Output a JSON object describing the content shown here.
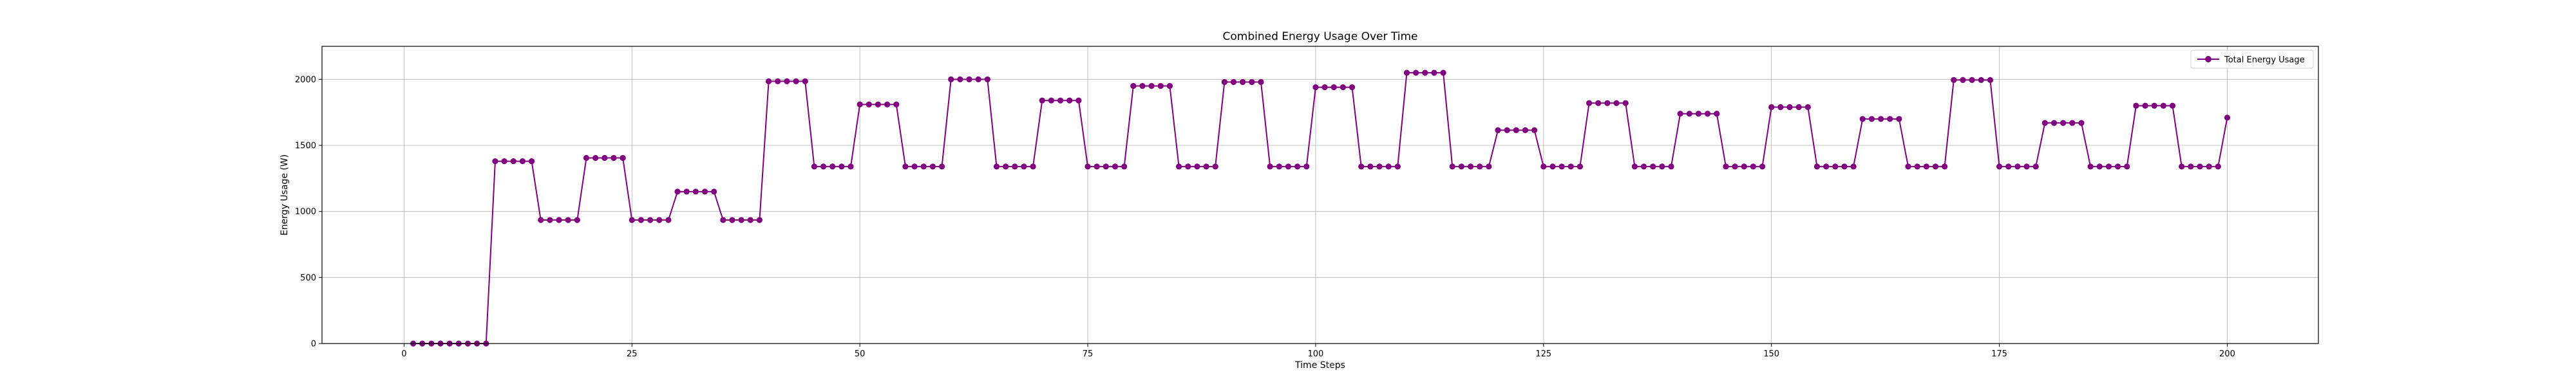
{
  "chart_data": {
    "type": "line",
    "title": "Combined Energy Usage Over Time",
    "xlabel": "Time Steps",
    "ylabel": "Energy Usage (W)",
    "xlim": [
      -9,
      210
    ],
    "ylim": [
      0,
      2250
    ],
    "xticks": [
      0,
      25,
      50,
      75,
      100,
      125,
      150,
      175,
      200
    ],
    "yticks": [
      0,
      500,
      1000,
      1500,
      2000
    ],
    "grid": true,
    "legend": "top-right",
    "series": [
      {
        "name": "Total Energy Usage",
        "color": "#800080",
        "marker": "circle",
        "segments": [
          {
            "x_start": 1,
            "x_end": 9,
            "y": 0
          },
          {
            "x_start": 10,
            "x_end": 14,
            "y": 1380
          },
          {
            "x_start": 15,
            "x_end": 19,
            "y": 935
          },
          {
            "x_start": 20,
            "x_end": 24,
            "y": 1405
          },
          {
            "x_start": 25,
            "x_end": 29,
            "y": 935
          },
          {
            "x_start": 30,
            "x_end": 34,
            "y": 1150
          },
          {
            "x_start": 35,
            "x_end": 39,
            "y": 935
          },
          {
            "x_start": 40,
            "x_end": 44,
            "y": 1985
          },
          {
            "x_start": 45,
            "x_end": 49,
            "y": 1340
          },
          {
            "x_start": 50,
            "x_end": 54,
            "y": 1810
          },
          {
            "x_start": 55,
            "x_end": 59,
            "y": 1340
          },
          {
            "x_start": 60,
            "x_end": 64,
            "y": 2000
          },
          {
            "x_start": 65,
            "x_end": 69,
            "y": 1340
          },
          {
            "x_start": 70,
            "x_end": 74,
            "y": 1840
          },
          {
            "x_start": 75,
            "x_end": 79,
            "y": 1340
          },
          {
            "x_start": 80,
            "x_end": 84,
            "y": 1950
          },
          {
            "x_start": 85,
            "x_end": 89,
            "y": 1340
          },
          {
            "x_start": 90,
            "x_end": 94,
            "y": 1980
          },
          {
            "x_start": 95,
            "x_end": 99,
            "y": 1340
          },
          {
            "x_start": 100,
            "x_end": 104,
            "y": 1940
          },
          {
            "x_start": 105,
            "x_end": 109,
            "y": 1340
          },
          {
            "x_start": 110,
            "x_end": 114,
            "y": 2050
          },
          {
            "x_start": 115,
            "x_end": 119,
            "y": 1340
          },
          {
            "x_start": 120,
            "x_end": 124,
            "y": 1615
          },
          {
            "x_start": 125,
            "x_end": 129,
            "y": 1340
          },
          {
            "x_start": 130,
            "x_end": 134,
            "y": 1820
          },
          {
            "x_start": 135,
            "x_end": 139,
            "y": 1340
          },
          {
            "x_start": 140,
            "x_end": 144,
            "y": 1740
          },
          {
            "x_start": 145,
            "x_end": 149,
            "y": 1340
          },
          {
            "x_start": 150,
            "x_end": 154,
            "y": 1790
          },
          {
            "x_start": 155,
            "x_end": 159,
            "y": 1340
          },
          {
            "x_start": 160,
            "x_end": 164,
            "y": 1700
          },
          {
            "x_start": 165,
            "x_end": 169,
            "y": 1340
          },
          {
            "x_start": 170,
            "x_end": 174,
            "y": 1995
          },
          {
            "x_start": 175,
            "x_end": 179,
            "y": 1340
          },
          {
            "x_start": 180,
            "x_end": 184,
            "y": 1670
          },
          {
            "x_start": 185,
            "x_end": 189,
            "y": 1340
          },
          {
            "x_start": 190,
            "x_end": 194,
            "y": 1800
          },
          {
            "x_start": 195,
            "x_end": 199,
            "y": 1340
          },
          {
            "x_start": 200,
            "x_end": 200,
            "y": 1710
          }
        ]
      }
    ]
  }
}
